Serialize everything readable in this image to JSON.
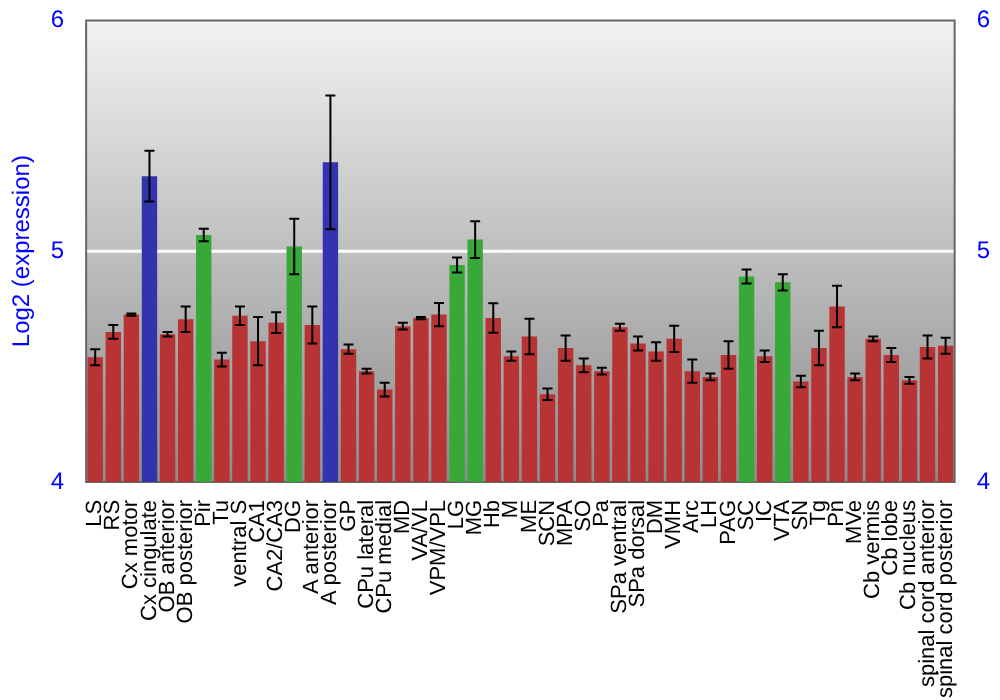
{
  "chart_data": {
    "type": "bar",
    "ylabel": "Log2 (expression)",
    "categories": [
      "LS",
      "RS",
      "Cx motor",
      "Cx cingulate",
      "OB anterior",
      "OB posterior",
      "Pir",
      "Tu",
      "ventral S",
      "CA1",
      "CA2/CA3",
      "DG",
      "A anterior",
      "A posterior",
      "GP",
      "CPu lateral",
      "CPu medial",
      "MD",
      "VA/VL",
      "VPM/VPL",
      "LG",
      "MG",
      "Hb",
      "M",
      "ME",
      "SCN",
      "MPA",
      "SO",
      "Pa",
      "SPa ventral",
      "SPa dorsal",
      "DM",
      "VMH",
      "Arc",
      "LH",
      "PAG",
      "SC",
      "IC",
      "VTA",
      "SN",
      "Tg",
      "Pn",
      "MVe",
      "Cb vermis",
      "Cb lobe",
      "Cb nucleus",
      "spinal cord anterior",
      "spinal cord posterior"
    ],
    "values": [
      4.54,
      4.65,
      4.725,
      5.325,
      4.64,
      4.705,
      5.07,
      4.53,
      4.72,
      4.61,
      4.69,
      5.02,
      4.68,
      5.385,
      4.575,
      4.48,
      4.4,
      4.675,
      4.71,
      4.725,
      4.94,
      5.05,
      4.71,
      4.545,
      4.63,
      4.38,
      4.58,
      4.505,
      4.48,
      4.67,
      4.6,
      4.565,
      4.62,
      4.48,
      4.455,
      4.55,
      4.89,
      4.545,
      4.865,
      4.435,
      4.58,
      4.76,
      4.455,
      4.62,
      4.55,
      4.44,
      4.585,
      4.59
    ],
    "errors": [
      0.035,
      0.03,
      0.005,
      0.11,
      0.01,
      0.055,
      0.027,
      0.03,
      0.04,
      0.105,
      0.045,
      0.12,
      0.08,
      0.29,
      0.02,
      0.01,
      0.03,
      0.015,
      0.005,
      0.05,
      0.033,
      0.08,
      0.064,
      0.02,
      0.077,
      0.025,
      0.055,
      0.03,
      0.015,
      0.015,
      0.03,
      0.04,
      0.057,
      0.05,
      0.015,
      0.06,
      0.03,
      0.025,
      0.035,
      0.025,
      0.075,
      0.09,
      0.015,
      0.01,
      0.03,
      0.015,
      0.05,
      0.035
    ],
    "colors": [
      "#b83333",
      "#b83333",
      "#b83333",
      "#3333b0",
      "#b83333",
      "#b83333",
      "#38a838",
      "#b83333",
      "#b83333",
      "#b83333",
      "#b83333",
      "#38a838",
      "#b83333",
      "#3333b0",
      "#b83333",
      "#b83333",
      "#b83333",
      "#b83333",
      "#b83333",
      "#b83333",
      "#38a838",
      "#38a838",
      "#b83333",
      "#b83333",
      "#b83333",
      "#b83333",
      "#b83333",
      "#b83333",
      "#b83333",
      "#b83333",
      "#b83333",
      "#b83333",
      "#b83333",
      "#b83333",
      "#b83333",
      "#b83333",
      "#38a838",
      "#b83333",
      "#38a838",
      "#b83333",
      "#b83333",
      "#b83333",
      "#b83333",
      "#b83333",
      "#b83333",
      "#b83333",
      "#b83333",
      "#b83333"
    ],
    "ylim": [
      4,
      6
    ],
    "yticks": [
      4,
      5,
      6
    ],
    "y2lim": [
      4,
      6
    ],
    "y2ticks": [
      4,
      5,
      6
    ],
    "grid": "y",
    "legend": false
  }
}
